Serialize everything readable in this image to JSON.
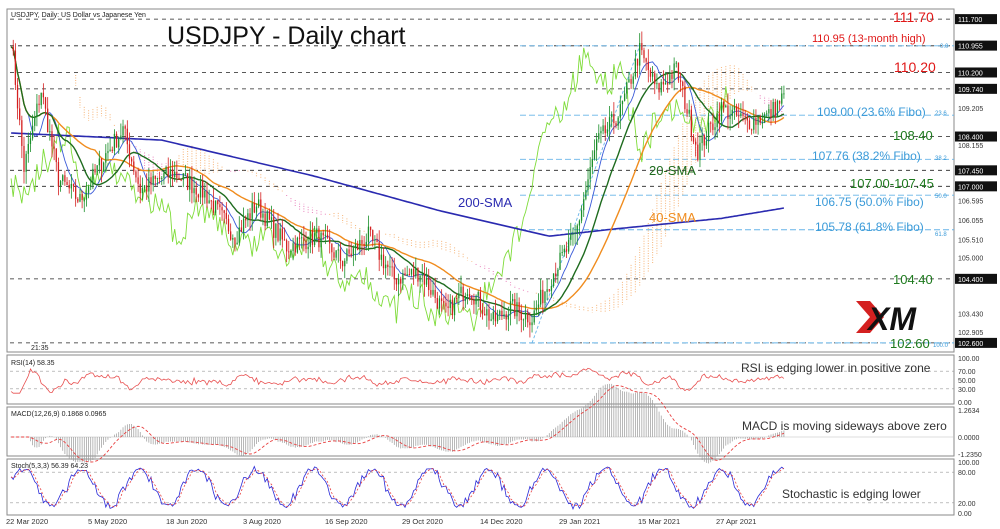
{
  "header": {
    "symbol_info": "USDJPY, Daily:  US Dollar vs Japanese Yen",
    "title": "USDJPY - Daily chart",
    "clock": "21:35"
  },
  "logo_text": "XM",
  "colors": {
    "bull": "#1a8f2a",
    "bear": "#d42020",
    "sma20": "#1e6b1e",
    "sma40": "#f08c1e",
    "sma200": "#2a2ab0",
    "tenkan": "#3a5ad8",
    "chikou": "#7fdc3a",
    "cloud_bull": "#f5b070",
    "cloud_bear": "#e87ab8",
    "fibo": "#66b4e8",
    "level_red": "#e01818",
    "level_green": "#1e7a1e",
    "rsi": "#e85050",
    "macd_hist": "#9a9a9a",
    "macd_signal": "#e84040",
    "stoch_k": "#2a2ad8",
    "stoch_d": "#e84040"
  },
  "price_axis": {
    "ticks": [
      "111.700",
      "110.955",
      "110.200",
      "109.740",
      "109.205",
      "108.400",
      "108.155",
      "107.450",
      "107.000",
      "106.595",
      "106.055",
      "105.510",
      "105.000",
      "104.400",
      "103.430",
      "102.905",
      "102.600"
    ],
    "highlighted": [
      "111.700",
      "110.955",
      "110.200",
      "109.740",
      "108.400",
      "107.450",
      "107.000",
      "104.400",
      "102.600"
    ]
  },
  "annotations": {
    "level_111_70": "111.70",
    "level_110_95": "110.95 (13-month high)",
    "level_110_20": "110.20",
    "fibo_23_6": "109.00 (23.6% Fibo)",
    "level_108_40": "108.40",
    "fibo_38_2": "107.76 (38.2% Fibo)",
    "range_107": "107.00-107.45",
    "fibo_50": "106.75 (50.0% Fibo)",
    "fibo_61_8": "105.78 (61.8% Fibo)",
    "level_104_40": "104.40",
    "level_102_60": "102.60",
    "sma20": "20-SMA",
    "sma40": "40-SMA",
    "sma200": "200-SMA",
    "fibo_tag_0": "0.0",
    "fibo_tag_23": "23.6",
    "fibo_tag_38": "38.2",
    "fibo_tag_50": "50.0",
    "fibo_tag_61": "61.8",
    "fibo_tag_100": "100.0"
  },
  "rsi": {
    "label": "RSI(14) 58.35",
    "note": "RSI is edging lower in positive zone",
    "ticks": [
      "100.00",
      "70.00",
      "50.00",
      "30.00",
      "0.00"
    ]
  },
  "macd": {
    "label": "MACD(12,26,9) 0.1868 0.0965",
    "note": "MACD is moving sideways above zero",
    "ticks": [
      "1.2634",
      "0.0000",
      "-1.2350"
    ]
  },
  "stochastic": {
    "label": "Stoch(5,3,3) 56.39 64.23",
    "note": "Stochastic is edging lower",
    "ticks": [
      "100.00",
      "80.00",
      "20.00",
      "0.00"
    ]
  },
  "time_axis": [
    "22 Mar 2020",
    "5 May 2020",
    "18 Jun 2020",
    "3 Aug 2020",
    "16 Sep 2020",
    "29 Oct 2020",
    "14 Dec 2020",
    "29 Jan 2021",
    "15 Mar 2021",
    "27 Apr 2021"
  ],
  "chart_data": {
    "type": "candlestick",
    "title": "USDJPY - Daily chart",
    "price_range": [
      102.4,
      111.9
    ],
    "approx_close_path": [
      {
        "date": "22 Mar 2020",
        "close": 110.4
      },
      {
        "date": "5 May 2020",
        "close": 106.6
      },
      {
        "date": "18 Jun 2020",
        "close": 107.0
      },
      {
        "date": "3 Aug 2020",
        "close": 105.9
      },
      {
        "date": "16 Sep 2020",
        "close": 104.9
      },
      {
        "date": "29 Oct 2020",
        "close": 104.3
      },
      {
        "date": "14 Dec 2020",
        "close": 103.4
      },
      {
        "date": "29 Jan 2021",
        "close": 104.7
      },
      {
        "date": "15 Mar 2021",
        "close": 109.2
      },
      {
        "date": "27 Apr 2021",
        "close": 108.6
      },
      {
        "date": "latest",
        "close": 109.3
      }
    ],
    "key_levels": [
      111.7,
      110.95,
      110.2,
      109.0,
      108.4,
      107.76,
      107.45,
      107.0,
      106.75,
      105.78,
      104.4,
      102.6
    ],
    "indicators": [
      "20-SMA",
      "40-SMA",
      "200-SMA",
      "Ichimoku",
      "RSI(14)",
      "MACD(12,26,9)",
      "Stoch(5,3,3)"
    ],
    "rsi_last": 58.35,
    "macd_last": [
      0.1868,
      0.0965
    ],
    "stoch_last": [
      56.39,
      64.23
    ]
  }
}
